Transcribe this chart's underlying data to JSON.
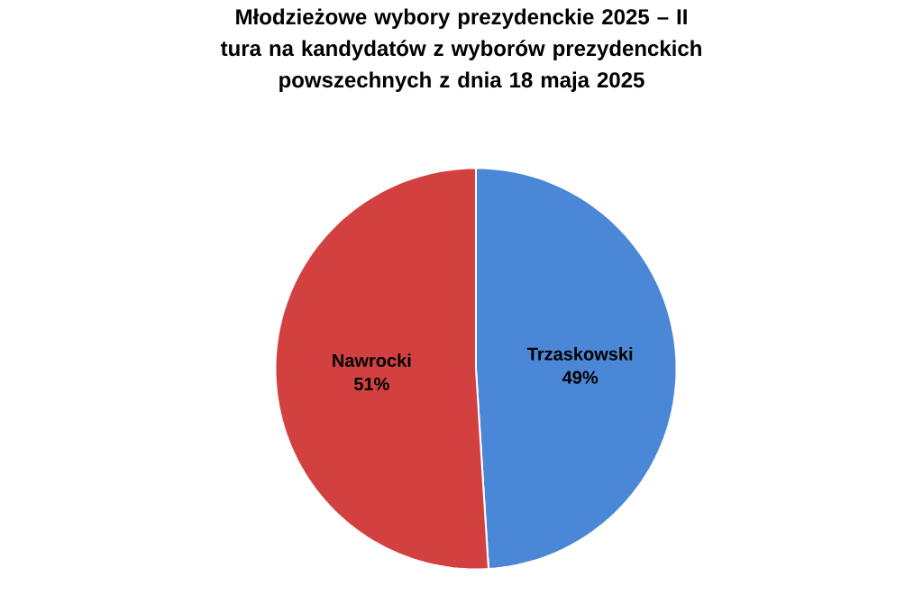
{
  "chart_data": {
    "type": "pie",
    "title": "Młodzieżowe wybory prezydenckie 2025 – II tura na kandydatów z wyborów prezydenckich powszechnych z dnia 18 maja 2025",
    "categories": [
      "Trzaskowski",
      "Nawrocki"
    ],
    "values": [
      49,
      51
    ],
    "value_labels": [
      "49%",
      "51%"
    ],
    "colors": [
      "#4a87d6",
      "#d24140"
    ]
  }
}
